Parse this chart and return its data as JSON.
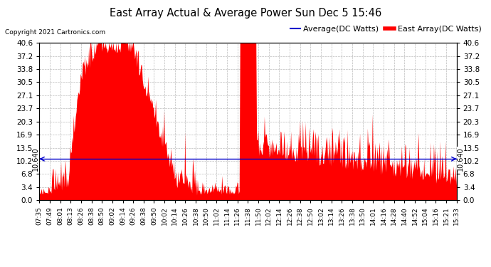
{
  "title": "East Array Actual & Average Power Sun Dec 5 15:46",
  "copyright": "Copyright 2021 Cartronics.com",
  "yticks": [
    0.0,
    3.4,
    6.8,
    10.2,
    13.5,
    16.9,
    20.3,
    23.7,
    27.1,
    30.5,
    33.8,
    37.2,
    40.6
  ],
  "ymin": 0.0,
  "ymax": 40.6,
  "hline_value": 10.64,
  "hline_label": "10.640",
  "background_color": "#ffffff",
  "plot_bg_color": "#ffffff",
  "grid_color": "#bbbbbb",
  "bar_color": "#ff0000",
  "avg_color": "#0000cc",
  "title_color": "#000000",
  "copyright_color": "#000000",
  "legend_avg_color": "#0000cc",
  "legend_east_color": "#ff0000",
  "xtick_labels": [
    "07:35",
    "07:49",
    "08:01",
    "08:13",
    "08:26",
    "08:38",
    "08:50",
    "09:02",
    "09:14",
    "09:26",
    "09:38",
    "09:50",
    "10:02",
    "10:14",
    "10:26",
    "10:38",
    "10:50",
    "11:02",
    "11:14",
    "11:26",
    "11:38",
    "11:50",
    "12:02",
    "12:14",
    "12:26",
    "12:38",
    "12:50",
    "13:02",
    "13:14",
    "13:26",
    "13:38",
    "13:50",
    "14:01",
    "14:16",
    "14:28",
    "14:40",
    "14:52",
    "15:04",
    "15:16",
    "15:21",
    "15:33"
  ],
  "n_points": 600,
  "seed": 42
}
